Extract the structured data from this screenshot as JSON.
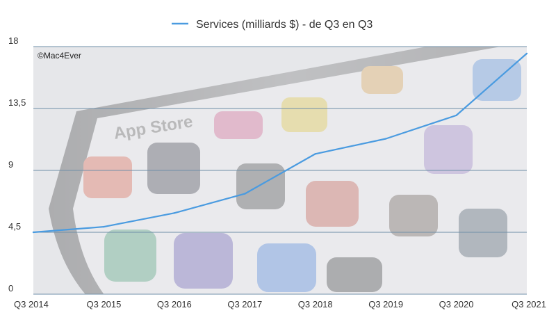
{
  "chart_data": {
    "type": "line",
    "categories": [
      "Q3 2014",
      "Q3 2015",
      "Q3 2016",
      "Q3 2017",
      "Q3 2018",
      "Q3 2019",
      "Q3 2020",
      "Q3 2021"
    ],
    "series": [
      {
        "name": "Services (milliards $) - de Q3 en Q3",
        "values": [
          4.5,
          4.9,
          5.9,
          7.3,
          10.2,
          11.3,
          13.0,
          17.5
        ],
        "color": "#4a9be0"
      }
    ],
    "ylim": [
      0,
      18
    ],
    "yticks": [
      0,
      4.5,
      9,
      13.5,
      18
    ],
    "ytick_labels": [
      "0",
      "4,5",
      "9",
      "13,5",
      "18"
    ],
    "grid": true,
    "legend": "top-center",
    "background_image": "blurred-app-store-phone-photo"
  },
  "credit": "©Mac4Ever"
}
